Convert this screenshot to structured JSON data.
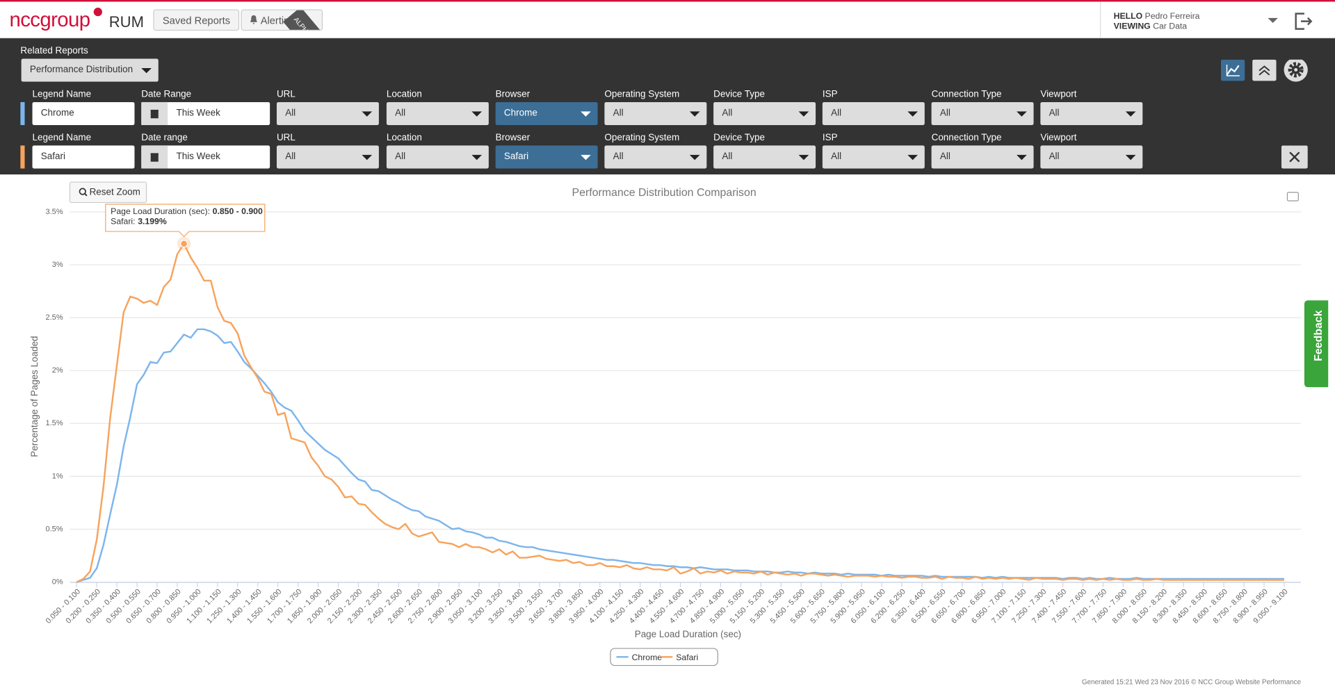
{
  "ui": {
    "header": {
      "logo": "nccgroup",
      "product": "RUM",
      "saved_reports": "Saved Reports",
      "alerting": "Alerting",
      "alpha": "ALPHA",
      "hello_label": "HELLO",
      "user": "Pedro Ferreira",
      "viewing_label": "VIEWING",
      "dataset": "Car Data"
    },
    "panel": {
      "related_reports_label": "Related Reports",
      "related_report": "Performance Distribution",
      "rows": [
        {
          "color": "#7cb5ec",
          "fields": [
            {
              "label": "Legend Name",
              "value": "Chrome"
            },
            {
              "label": "Date Range",
              "value": "This Week"
            },
            {
              "label": "URL",
              "value": "All"
            },
            {
              "label": "Location",
              "value": "All"
            },
            {
              "label": "Browser",
              "value": "Chrome",
              "active": true
            },
            {
              "label": "Operating System",
              "value": "All"
            },
            {
              "label": "Device Type",
              "value": "All"
            },
            {
              "label": "ISP",
              "value": "All"
            },
            {
              "label": "Connection Type",
              "value": "All"
            },
            {
              "label": "Viewport",
              "value": "All"
            }
          ]
        },
        {
          "color": "#f7a35c",
          "fields": [
            {
              "label": "Legend Name",
              "value": "Safari"
            },
            {
              "label": "Date range",
              "value": "This Week"
            },
            {
              "label": "URL",
              "value": "All"
            },
            {
              "label": "Location",
              "value": "All"
            },
            {
              "label": "Browser",
              "value": "Safari",
              "active": true
            },
            {
              "label": "Operating System",
              "value": "All"
            },
            {
              "label": "Device Type",
              "value": "All"
            },
            {
              "label": "ISP",
              "value": "All"
            },
            {
              "label": "Connection Type",
              "value": "All"
            },
            {
              "label": "Viewport",
              "value": "All"
            }
          ]
        }
      ]
    },
    "feedback": "Feedback",
    "footer": "Generated 15:21 Wed 23 Nov 2016 © NCC Group Website Performance"
  },
  "chart_data": {
    "type": "line",
    "title": "Performance Distribution Comparison",
    "x_label": "Page Load Duration (sec)",
    "y_label": "Percentage of Pages Loaded",
    "reset_zoom": "Reset Zoom",
    "grid": true,
    "legend": "bottom",
    "ylim": [
      0,
      3.5
    ],
    "yticks": [
      {
        "value": 0,
        "label": "0%"
      },
      {
        "value": 0.5,
        "label": "0.5%"
      },
      {
        "value": 1,
        "label": "1%"
      },
      {
        "value": 1.5,
        "label": "1.5%"
      },
      {
        "value": 2,
        "label": "2%"
      },
      {
        "value": 2.5,
        "label": "2.5%"
      },
      {
        "value": 3,
        "label": "3%"
      },
      {
        "value": 3.5,
        "label": "3.5%"
      }
    ],
    "tooltip": {
      "label": "Page Load Duration (sec):",
      "range": "0.850 - 0.900",
      "series": "Safari:",
      "value": "3.199%",
      "series_index": 1,
      "point_index": 16
    },
    "categories": [
      "0.050 - 0.100",
      null,
      null,
      "0.200 - 0.250",
      null,
      null,
      "0.350 - 0.400",
      null,
      null,
      "0.500 - 0.550",
      null,
      null,
      "0.650 - 0.700",
      null,
      null,
      "0.800 - 0.850",
      null,
      null,
      "0.950 - 1.000",
      null,
      null,
      "1.100 - 1.150",
      null,
      null,
      "1.250 - 1.300",
      null,
      null,
      "1.400 - 1.450",
      null,
      null,
      "1.550 - 1.600",
      null,
      null,
      "1.700 - 1.750",
      null,
      null,
      "1.850 - 1.900",
      null,
      null,
      "2.000 - 2.050",
      null,
      null,
      "2.150 - 2.200",
      null,
      null,
      "2.300 - 2.350",
      null,
      null,
      "2.450 - 2.500",
      null,
      null,
      "2.600 - 2.650",
      null,
      null,
      "2.750 - 2.800",
      null,
      null,
      "2.900 - 2.950",
      null,
      null,
      "3.050 - 3.100",
      null,
      null,
      "3.200 - 3.250",
      null,
      null,
      "3.350 - 3.400",
      null,
      null,
      "3.500 - 3.550",
      null,
      null,
      "3.650 - 3.700",
      null,
      null,
      "3.800 - 3.850",
      null,
      null,
      "3.950 - 4.000",
      null,
      null,
      "4.100 - 4.150",
      null,
      null,
      "4.250 - 4.300",
      null,
      null,
      "4.400 - 4.450",
      null,
      null,
      "4.550 - 4.600",
      null,
      null,
      "4.700 - 4.750",
      null,
      null,
      "4.850 - 4.900",
      null,
      null,
      "5.000 - 5.050",
      null,
      null,
      "5.150 - 5.200",
      null,
      null,
      "5.300 - 5.350",
      null,
      null,
      "5.450 - 5.500",
      null,
      null,
      "5.600 - 5.650",
      null,
      null,
      "5.750 - 5.800",
      null,
      null,
      "5.900 - 5.950",
      null,
      null,
      "6.050 - 6.100",
      null,
      null,
      "6.200 - 6.250",
      null,
      null,
      "6.350 - 6.400",
      null,
      null,
      "6.500 - 6.550",
      null,
      null,
      "6.650 - 6.700",
      null,
      null,
      "6.800 - 6.850",
      null,
      null,
      "6.950 - 7.000",
      null,
      null,
      "7.100 - 7.150",
      null,
      null,
      "7.250 - 7.300",
      null,
      null,
      "7.400 - 7.450",
      null,
      null,
      "7.550 - 7.600",
      null,
      null,
      "7.700 - 7.750",
      null,
      null,
      "7.850 - 7.900",
      null,
      null,
      "8.000 - 8.050",
      null,
      null,
      "8.150 - 8.200",
      null,
      null,
      "8.300 - 8.350",
      null,
      null,
      "8.450 - 8.500",
      null,
      null,
      "8.600 - 8.650",
      null,
      null,
      "8.750 - 8.800",
      null,
      null,
      "8.900 - 8.950",
      null,
      null,
      "9.050 - 9.100"
    ],
    "series": [
      {
        "name": "Chrome",
        "color": "#7cb5ec",
        "values": [
          0,
          0.02,
          0.04,
          0.13,
          0.35,
          0.64,
          0.92,
          1.28,
          1.56,
          1.87,
          1.96,
          2.08,
          2.07,
          2.17,
          2.18,
          2.26,
          2.34,
          2.31,
          2.39,
          2.39,
          2.37,
          2.33,
          2.26,
          2.27,
          2.18,
          2.08,
          2.02,
          1.95,
          1.88,
          1.8,
          1.7,
          1.65,
          1.62,
          1.53,
          1.43,
          1.37,
          1.31,
          1.25,
          1.21,
          1.17,
          1.1,
          1.03,
          0.97,
          0.95,
          0.87,
          0.86,
          0.82,
          0.78,
          0.75,
          0.71,
          0.68,
          0.67,
          0.62,
          0.6,
          0.58,
          0.54,
          0.5,
          0.51,
          0.48,
          0.47,
          0.45,
          0.42,
          0.42,
          0.39,
          0.38,
          0.36,
          0.34,
          0.33,
          0.33,
          0.31,
          0.3,
          0.29,
          0.28,
          0.27,
          0.26,
          0.25,
          0.24,
          0.23,
          0.22,
          0.21,
          0.21,
          0.2,
          0.19,
          0.18,
          0.18,
          0.17,
          0.16,
          0.16,
          0.15,
          0.15,
          0.14,
          0.14,
          0.13,
          0.14,
          0.13,
          0.12,
          0.12,
          0.12,
          0.11,
          0.11,
          0.11,
          0.1,
          0.1,
          0.1,
          0.09,
          0.09,
          0.1,
          0.09,
          0.09,
          0.08,
          0.09,
          0.08,
          0.08,
          0.08,
          0.07,
          0.08,
          0.07,
          0.07,
          0.07,
          0.07,
          0.06,
          0.07,
          0.06,
          0.06,
          0.06,
          0.06,
          0.06,
          0.05,
          0.06,
          0.05,
          0.05,
          0.05,
          0.05,
          0.05,
          0.05,
          0.04,
          0.05,
          0.04,
          0.05,
          0.04,
          0.04,
          0.04,
          0.04,
          0.04,
          0.04,
          0.04,
          0.04,
          0.03,
          0.04,
          0.04,
          0.03,
          0.04,
          0.03,
          0.03,
          0.04,
          0.03,
          0.03,
          0.03,
          0.04,
          0.03,
          0.03,
          0.03,
          0.03,
          0.03,
          0.03,
          0.03,
          0.03,
          0.03,
          0.03,
          0.03,
          0.03,
          0.03,
          0.03,
          0.03,
          0.03,
          0.03,
          0.03,
          0.03,
          0.03,
          0.03,
          0.03
        ]
      },
      {
        "name": "Safari",
        "color": "#f7a35c",
        "values": [
          0,
          0.03,
          0.1,
          0.4,
          0.9,
          1.55,
          2.05,
          2.55,
          2.7,
          2.68,
          2.64,
          2.66,
          2.62,
          2.79,
          2.86,
          3.1,
          3.199,
          3.07,
          2.97,
          2.85,
          2.85,
          2.6,
          2.47,
          2.45,
          2.35,
          2.14,
          2.03,
          1.93,
          1.8,
          1.78,
          1.58,
          1.6,
          1.36,
          1.34,
          1.32,
          1.18,
          1.1,
          1.0,
          0.97,
          0.9,
          0.8,
          0.81,
          0.74,
          0.73,
          0.66,
          0.6,
          0.55,
          0.52,
          0.5,
          0.55,
          0.46,
          0.43,
          0.45,
          0.47,
          0.38,
          0.37,
          0.36,
          0.33,
          0.36,
          0.33,
          0.33,
          0.31,
          0.28,
          0.31,
          0.26,
          0.29,
          0.23,
          0.23,
          0.24,
          0.25,
          0.22,
          0.21,
          0.2,
          0.21,
          0.18,
          0.19,
          0.16,
          0.16,
          0.18,
          0.15,
          0.15,
          0.14,
          0.16,
          0.13,
          0.12,
          0.14,
          0.12,
          0.12,
          0.11,
          0.14,
          0.08,
          0.1,
          0.13,
          0.08,
          0.1,
          0.09,
          0.11,
          0.08,
          0.1,
          0.09,
          0.09,
          0.08,
          0.1,
          0.07,
          0.09,
          0.08,
          0.07,
          0.08,
          0.06,
          0.08,
          0.08,
          0.07,
          0.06,
          0.07,
          0.06,
          0.05,
          0.06,
          0.06,
          0.06,
          0.05,
          0.06,
          0.05,
          0.05,
          0.04,
          0.05,
          0.05,
          0.04,
          0.04,
          0.05,
          0.03,
          0.05,
          0.04,
          0.04,
          0.03,
          0.05,
          0.03,
          0.04,
          0.03,
          0.04,
          0.03,
          0.04,
          0.03,
          0.02,
          0.04,
          0.03,
          0.03,
          0.03,
          0.02,
          0.03,
          0.03,
          0.02,
          0.03,
          0.02,
          0.03,
          0.02,
          0.03,
          0.02,
          0.02,
          0.03,
          0.02,
          0.02,
          0.03,
          0.02,
          0.02,
          0.02,
          0.02,
          0.02,
          0.02,
          0.02,
          0.02,
          0.02,
          0.02,
          0.02,
          0.02,
          0.02,
          0.02,
          0.02,
          0.02,
          0.02,
          0.02,
          0.02
        ]
      }
    ]
  }
}
